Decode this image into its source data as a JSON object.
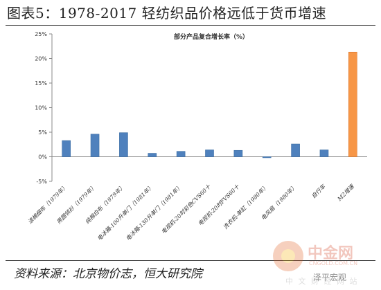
{
  "page": {
    "title": "图表5：1978-2017 轻纺织品价格远低于货币增速",
    "source": "资料来源：北京物价志，恒大研究院"
  },
  "watermark": {
    "brand": "中金网",
    "url": "CNGOLD.COM.CN",
    "sub": "中 文 财 经 网 站",
    "author": "泽平宏观"
  },
  "colors": {
    "bar": "#4f81bd",
    "bar_highlight": "#f79646",
    "axis": "#888888",
    "text": "#333333"
  },
  "chart_data": {
    "type": "bar",
    "title": "部分产品复合增长率（%）",
    "xlabel": "",
    "ylabel": "",
    "ylim": [
      -5,
      25
    ],
    "yticks": [
      -5,
      0,
      5,
      10,
      15,
      20,
      25
    ],
    "ytick_labels": [
      "-5%",
      "0%",
      "5%",
      "10%",
      "15%",
      "20%",
      "25%"
    ],
    "grid": false,
    "legend": "none",
    "categories": [
      "涤棉细布（1979年）",
      "男圆领衫（1979年）",
      "纯棉白布（1979年）",
      "电冰箱-100升单门（1981年）",
      "电冰箱-130升单门（1981年）",
      "电视机-20时彩色CVS60十",
      "电视机-20时FVS60十",
      "洗衣机-单缸（1980年）",
      "电风扇（1980年）",
      "自行车",
      "M2增速"
    ],
    "values": [
      3.3,
      4.6,
      4.9,
      0.7,
      1.1,
      1.4,
      1.3,
      -0.2,
      2.6,
      1.4,
      21.3
    ],
    "highlight_index": 10
  }
}
